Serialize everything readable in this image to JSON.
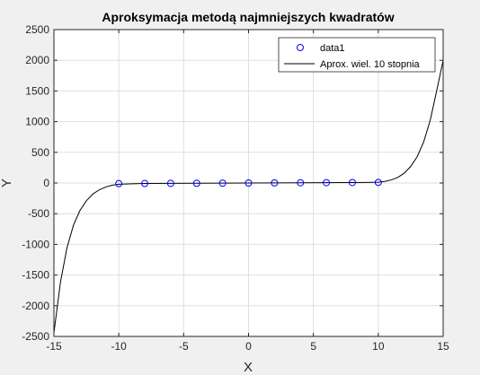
{
  "chart_data": {
    "type": "line",
    "title": "Aproksymacja metodą najmniejszych kwadratów",
    "xlabel": "X",
    "ylabel": "Y",
    "xlim": [
      -15,
      15
    ],
    "ylim": [
      -2500,
      2500
    ],
    "xticks": [
      -15,
      -10,
      -5,
      0,
      5,
      10,
      15
    ],
    "yticks": [
      -2500,
      -2000,
      -1500,
      -1000,
      -500,
      0,
      500,
      1000,
      1500,
      2000,
      2500
    ],
    "grid": true,
    "legend_position": "top-right",
    "series": [
      {
        "name": "data1",
        "style": "markers",
        "marker": "circle",
        "color": "#0000ff",
        "x": [
          -10,
          -8,
          -6,
          -4,
          -2,
          0,
          2,
          4,
          6,
          8,
          10
        ],
        "y": [
          -10,
          -8,
          -6,
          -4,
          -2,
          0,
          2,
          4,
          6,
          8,
          10
        ]
      },
      {
        "name": "Aprox. wiel. 10 stopnia",
        "style": "line",
        "color": "#000000",
        "x": [
          -15,
          -14.5,
          -14,
          -13.5,
          -13,
          -12.5,
          -12,
          -11.5,
          -11,
          -10.5,
          -10,
          -9,
          -8,
          -6,
          -4,
          -2,
          0,
          2,
          4,
          6,
          8,
          9,
          10,
          10.5,
          11,
          11.5,
          12,
          12.5,
          13,
          13.5,
          14,
          14.5,
          15
        ],
        "y": [
          -2440,
          -1620,
          -1060,
          -690,
          -450,
          -290,
          -180,
          -110,
          -65,
          -35,
          -20,
          -12,
          -8,
          -6,
          -4,
          -2,
          0,
          2,
          4,
          6,
          8,
          9,
          12,
          25,
          50,
          90,
          160,
          270,
          430,
          670,
          1020,
          1500,
          2000
        ]
      }
    ]
  }
}
